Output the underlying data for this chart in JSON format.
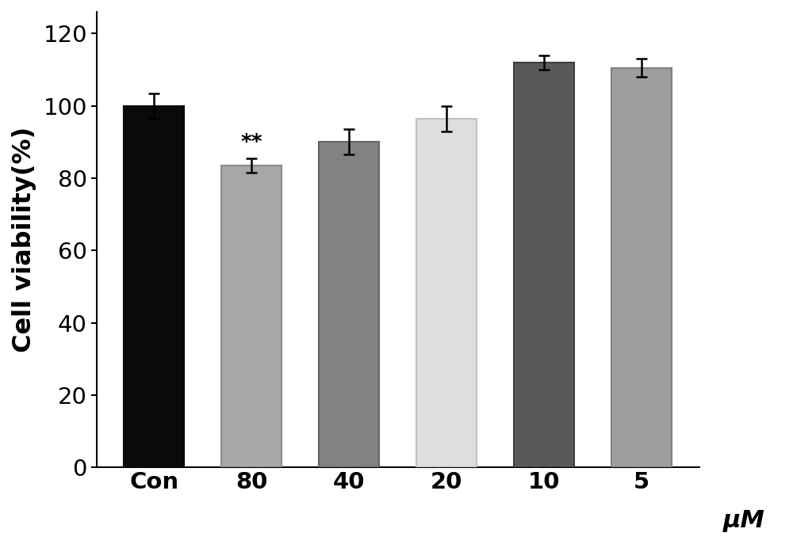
{
  "categories": [
    "Con",
    "80",
    "40",
    "20",
    "10",
    "5"
  ],
  "values": [
    100.0,
    83.5,
    90.0,
    96.5,
    112.0,
    110.5
  ],
  "errors": [
    3.5,
    2.0,
    3.5,
    3.5,
    2.0,
    2.5
  ],
  "bar_colors": [
    "#0a0a0a",
    "#a8a8a8",
    "#828282",
    "#dedede",
    "#595959",
    "#9e9e9e"
  ],
  "bar_edgecolors": [
    "#0a0a0a",
    "#8a8a8a",
    "#646464",
    "#c0c0c0",
    "#3e3e3e",
    "#808080"
  ],
  "ylabel": "Cell viability(%)",
  "xlabel": "μM",
  "ylim": [
    0,
    126
  ],
  "yticks": [
    0,
    20,
    40,
    60,
    80,
    100,
    120
  ],
  "annotation_bar_index": 1,
  "annotation_text": "**",
  "bar_width": 0.62,
  "ylabel_fontsize": 23,
  "xlabel_fontsize": 22,
  "tick_fontsize": 21,
  "annotation_fontsize": 19,
  "error_capsize": 5,
  "error_linewidth": 1.8,
  "background_color": "#ffffff"
}
